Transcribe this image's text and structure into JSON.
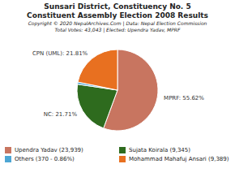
{
  "chart_data": {
    "type": "pie",
    "title": "Sunsari District, Constituency No. 5",
    "subtitle": "Constituent Assembly Election 2008 Results",
    "annotations": [
      "Copyright © 2020 NepalArchives.Com | Data: Nepal Election Commission",
      "Total Votes: 43,043 | Elected: Upendra Yadav, MPRF"
    ],
    "categories": [
      "Upendra Yadav (23,939)",
      "Sujata Koirala (9,345)",
      "Others (370 - 0.86%)",
      "Mohammad Mahafuj Ansari (9,389)"
    ],
    "values": [
      55.62,
      21.71,
      0.86,
      21.81
    ],
    "value_labels": [
      "MPRF: 55.62%",
      "NC: 21.71%",
      null,
      "CPN (UML): 21.81%"
    ],
    "colors": [
      "#c87560",
      "#2e6b1e",
      "#4da6d4",
      "#e87020"
    ],
    "data_labels": true,
    "legend": "bottom"
  }
}
